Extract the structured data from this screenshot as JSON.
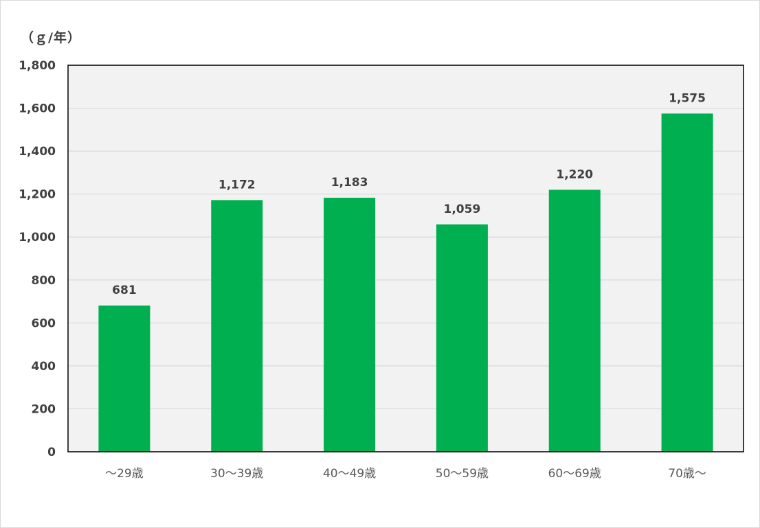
{
  "chart_data": {
    "type": "bar",
    "unit_label": "（ｇ/年）",
    "categories": [
      "～29歳",
      "30～39歳",
      "40～49歳",
      "50～59歳",
      "60～69歳",
      "70歳～"
    ],
    "values": [
      681,
      1172,
      1183,
      1059,
      1220,
      1575
    ],
    "value_labels": [
      "681",
      "1,172",
      "1,183",
      "1,059",
      "1,220",
      "1,575"
    ],
    "ylim": [
      0,
      1800
    ],
    "yticks": [
      0,
      200,
      400,
      600,
      800,
      1000,
      1200,
      1400,
      1600,
      1800
    ],
    "ytick_labels": [
      "0",
      "200",
      "400",
      "600",
      "800",
      "1,000",
      "1,200",
      "1,400",
      "1,600",
      "1,800"
    ],
    "grid": true,
    "colors": {
      "bar": "#00b050",
      "plot_bg": "#f2f2f2",
      "grid": "#d9d9d9",
      "axis": "#000000"
    }
  }
}
